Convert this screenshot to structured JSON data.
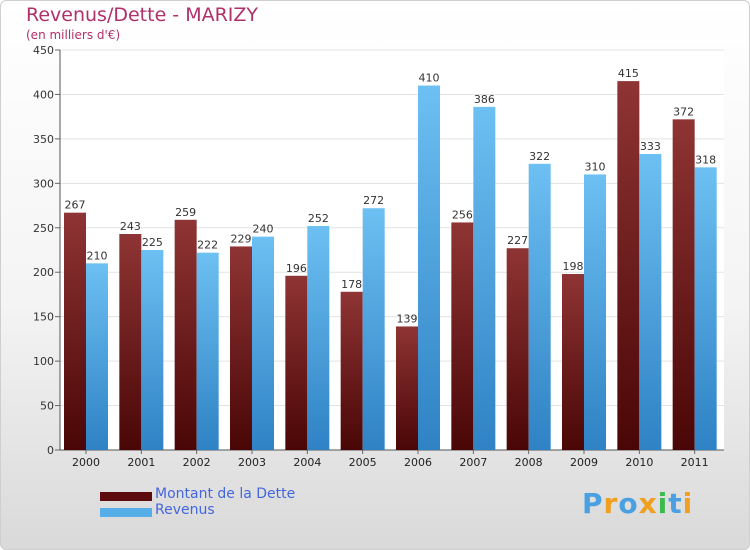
{
  "header": {
    "title": "Revenus/Dette - MARIZY",
    "subtitle": "(en milliers d'€)"
  },
  "colors": {
    "title": "#b0306a",
    "dette_bar": "#7a2323",
    "dette_bar_light": "#8f3434",
    "revenus_bar": "#56aee8",
    "revenus_bar_light": "#6cc0f2",
    "legend_text": "#4466dd",
    "grid": "#e3e3e3"
  },
  "legend": {
    "items": [
      {
        "label": "Montant de la Dette",
        "color": "#5c0c0c"
      },
      {
        "label": "Revenus",
        "color": "#56aee8"
      }
    ]
  },
  "logo": {
    "letters": [
      "P",
      "r",
      "o",
      "x",
      "i",
      "t",
      "i"
    ],
    "colors": [
      "#4aa0e0",
      "#f0a020",
      "#4aa0e0",
      "#f0a020",
      "#3cba4c",
      "#4aa0e0",
      "#f0a020"
    ]
  },
  "chart_data": {
    "type": "bar",
    "title": "Revenus/Dette - MARIZY",
    "subtitle": "(en milliers d'€)",
    "categories": [
      "2000",
      "2001",
      "2002",
      "2003",
      "2004",
      "2005",
      "2006",
      "2007",
      "2008",
      "2009",
      "2010",
      "2011"
    ],
    "series": [
      {
        "name": "Montant de la Dette",
        "values": [
          267,
          243,
          259,
          229,
          196,
          178,
          139,
          256,
          227,
          198,
          415,
          372
        ]
      },
      {
        "name": "Revenus",
        "values": [
          210,
          225,
          222,
          240,
          252,
          272,
          410,
          386,
          322,
          310,
          333,
          318
        ]
      }
    ],
    "ylim": [
      0,
      450
    ],
    "yticks": [
      0,
      50,
      100,
      150,
      200,
      250,
      300,
      350,
      400,
      450
    ],
    "grid": true,
    "legend_position": "bottom-left"
  }
}
